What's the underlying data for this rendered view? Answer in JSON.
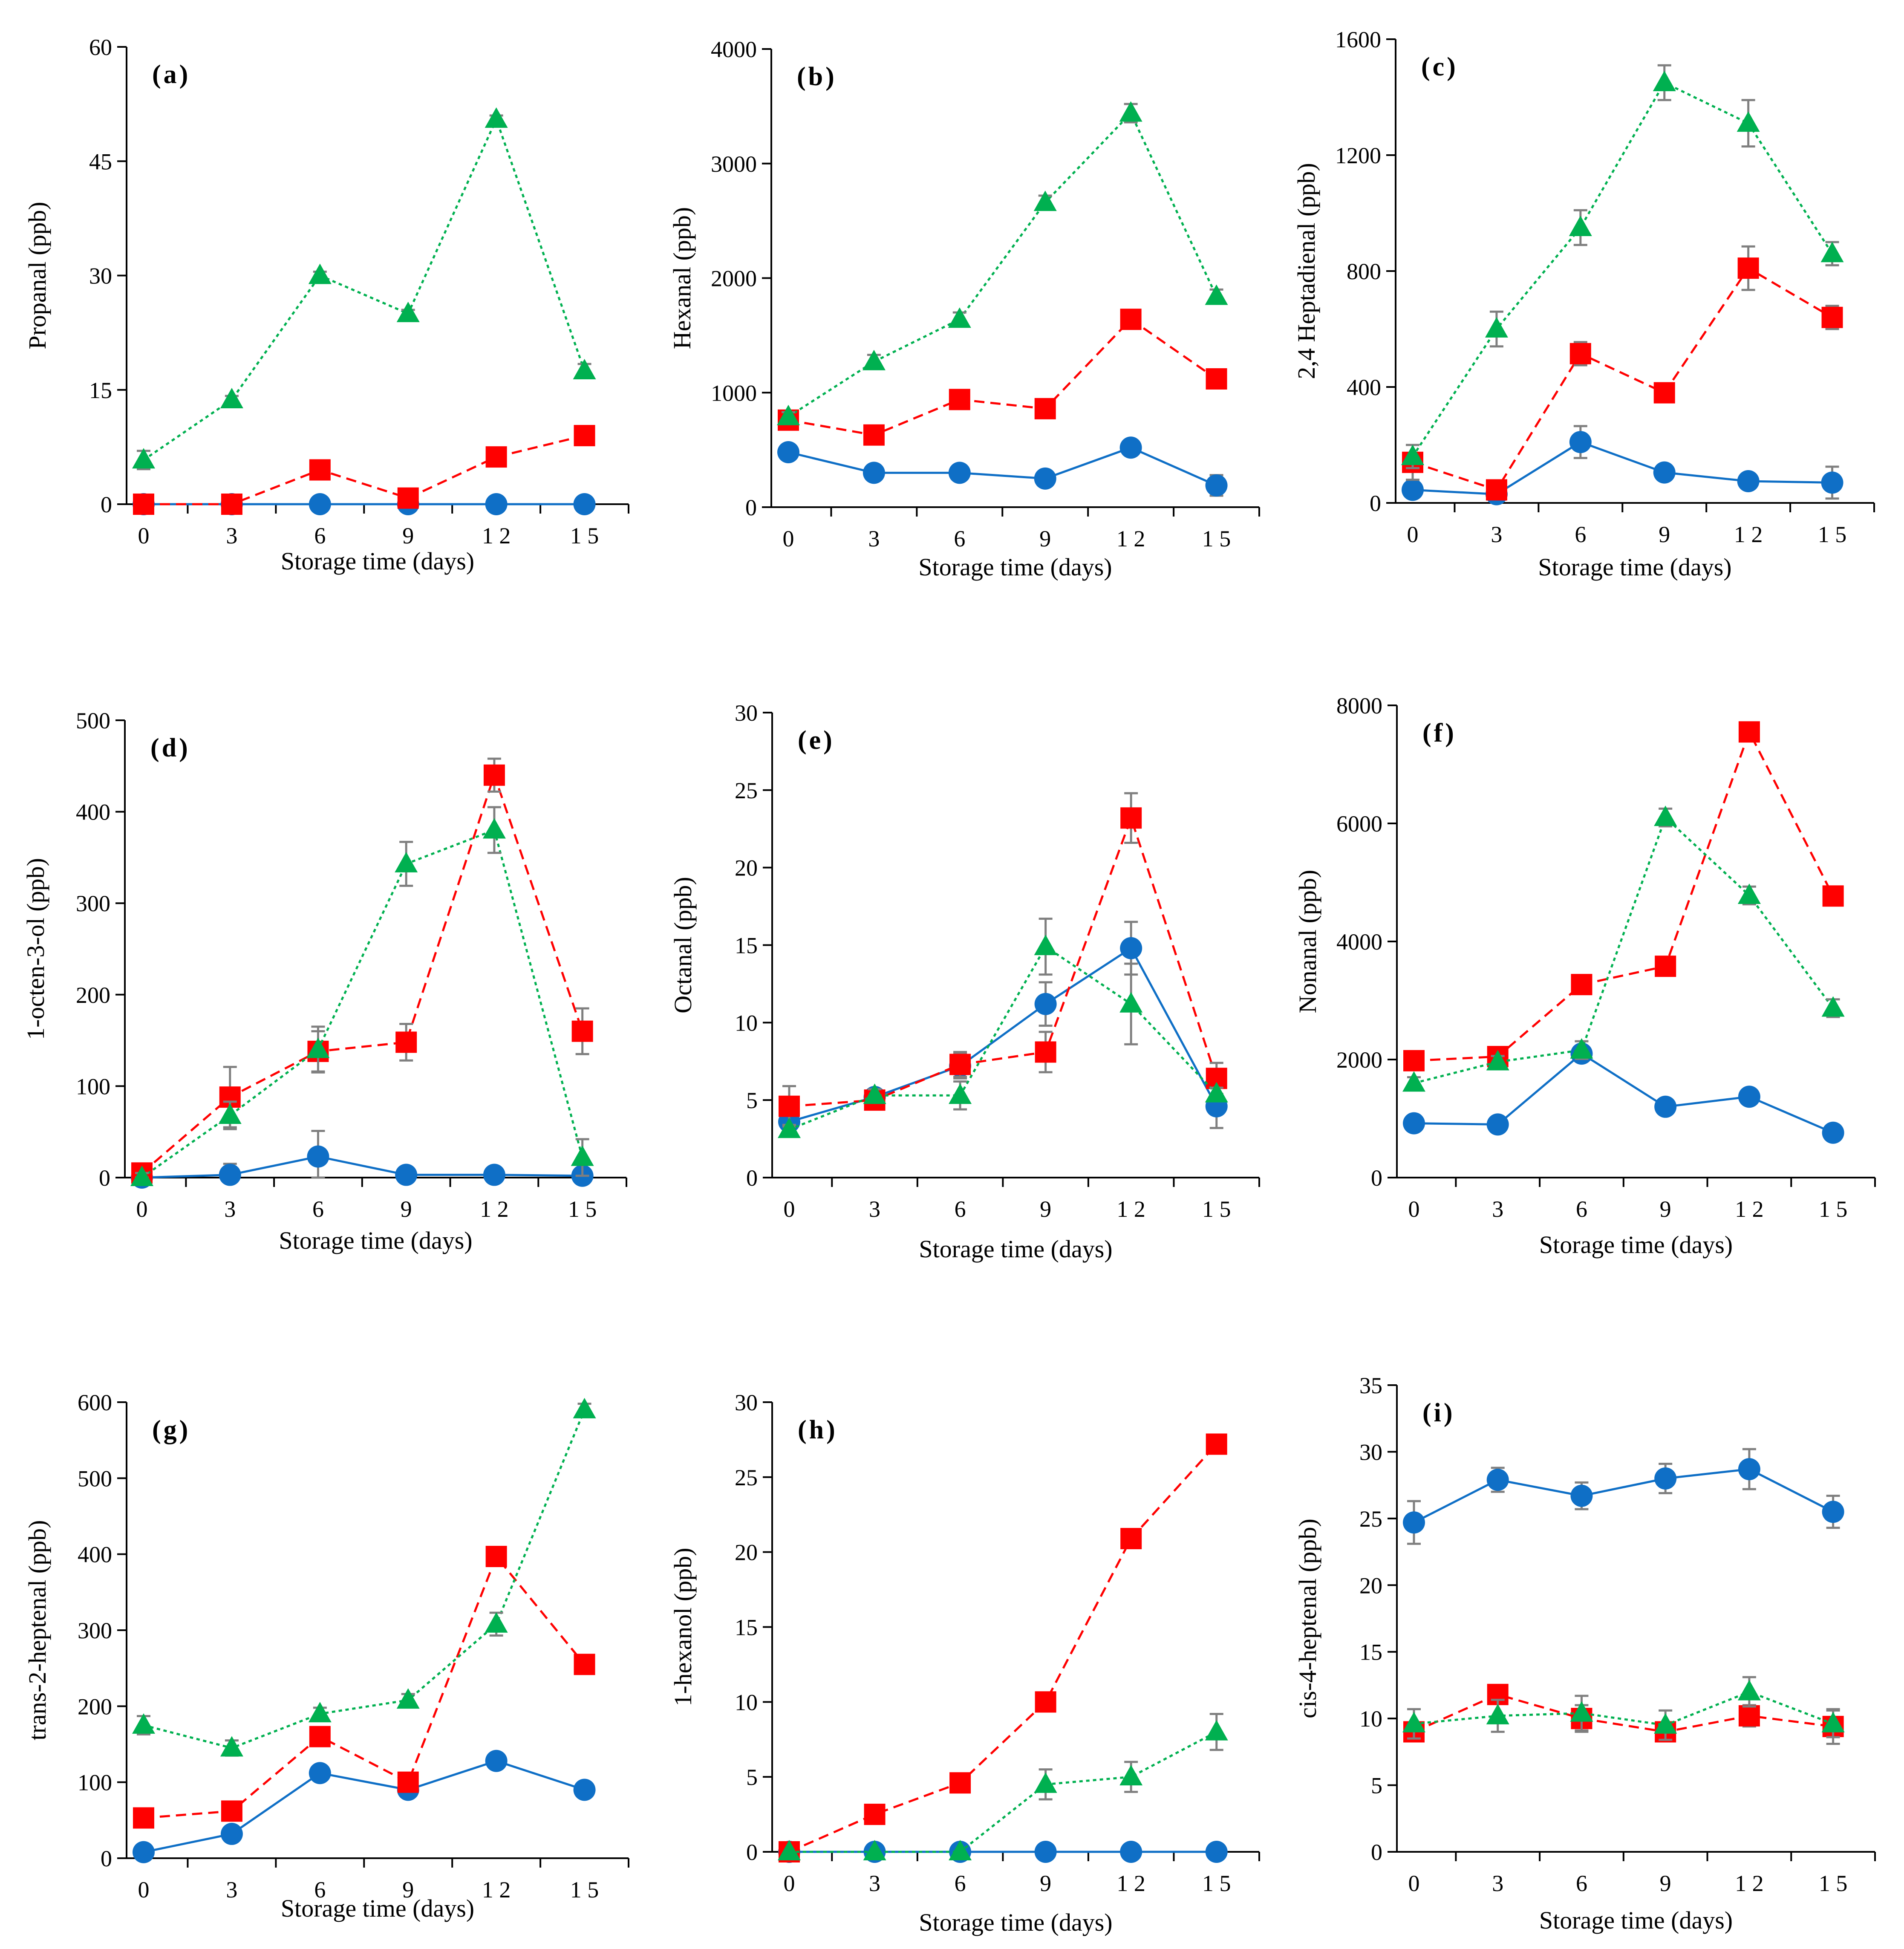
{
  "colors": {
    "blue": "#0f6fc6",
    "red": "#ff0000",
    "green": "#00b050",
    "error": "#7f7f7f",
    "axis": "#000000"
  },
  "chart_data": [
    {
      "type": "line",
      "label": "(a)",
      "ylabel": "Propanal (ppb)",
      "xlabel": "Storage time (days)",
      "ylim": [
        0,
        60
      ],
      "yticks": [
        0,
        15,
        30,
        45,
        60
      ],
      "x": [
        0,
        3,
        6,
        9,
        12,
        15
      ],
      "xtick_labels": [
        "0",
        "3",
        "6",
        "9",
        "1 2",
        "1 5"
      ],
      "series": [
        {
          "name": "blue",
          "color": "#0f6fc6",
          "marker": "circle",
          "dash": "solid",
          "values": [
            0,
            0,
            0,
            0,
            0,
            0
          ],
          "errors": [
            0,
            0,
            0,
            0,
            0,
            0
          ]
        },
        {
          "name": "red",
          "color": "#ff0000",
          "marker": "square",
          "dash": "dashed",
          "values": [
            0,
            0,
            4.5,
            0.8,
            6.2,
            9
          ],
          "errors": [
            0,
            0,
            0.4,
            0.3,
            0.4,
            0.5
          ]
        },
        {
          "name": "green",
          "color": "#00b050",
          "marker": "triangle",
          "dash": "dotted",
          "values": [
            5.8,
            13.7,
            30,
            25,
            50.5,
            17.5
          ],
          "errors": [
            1.2,
            0.5,
            0.5,
            0.5,
            0.5,
            0.9
          ]
        }
      ]
    },
    {
      "type": "line",
      "label": "(b)",
      "ylabel": "Hexanal (ppb)",
      "xlabel": "Storage time (days)",
      "ylim": [
        0,
        4000
      ],
      "yticks": [
        0,
        1000,
        2000,
        3000,
        4000
      ],
      "x": [
        0,
        3,
        6,
        9,
        12,
        15
      ],
      "xtick_labels": [
        "0",
        "3",
        "6",
        "9",
        "1 2",
        "1 5"
      ],
      "series": [
        {
          "name": "blue",
          "color": "#0f6fc6",
          "marker": "circle",
          "dash": "solid",
          "values": [
            480,
            300,
            300,
            250,
            520,
            190
          ],
          "errors": [
            40,
            30,
            30,
            30,
            40,
            90
          ]
        },
        {
          "name": "red",
          "color": "#ff0000",
          "marker": "square",
          "dash": "dashed",
          "values": [
            760,
            630,
            940,
            860,
            1640,
            1120
          ],
          "errors": [
            50,
            40,
            40,
            40,
            60,
            60
          ]
        },
        {
          "name": "green",
          "color": "#00b050",
          "marker": "triangle",
          "dash": "dotted",
          "values": [
            790,
            1270,
            1640,
            2660,
            3440,
            1840
          ],
          "errors": [
            40,
            60,
            60,
            60,
            80,
            60
          ]
        }
      ]
    },
    {
      "type": "line",
      "label": "(c)",
      "ylabel": "2,4 Heptadienal (ppb)",
      "xlabel": "Storage time (days)",
      "ylim": [
        0,
        1600
      ],
      "yticks": [
        0,
        400,
        800,
        1200,
        1600
      ],
      "x": [
        0,
        3,
        6,
        9,
        12,
        15
      ],
      "xtick_labels": [
        "0",
        "3",
        "6",
        "9",
        "1 2",
        "1 5"
      ],
      "series": [
        {
          "name": "blue",
          "color": "#0f6fc6",
          "marker": "circle",
          "dash": "solid",
          "values": [
            45,
            30,
            210,
            105,
            75,
            70
          ],
          "errors": [
            20,
            10,
            55,
            20,
            15,
            55
          ]
        },
        {
          "name": "red",
          "color": "#ff0000",
          "marker": "square",
          "dash": "dashed",
          "values": [
            140,
            45,
            515,
            380,
            810,
            640
          ],
          "errors": [
            60,
            20,
            40,
            30,
            75,
            40
          ]
        },
        {
          "name": "green",
          "color": "#00b050",
          "marker": "triangle",
          "dash": "dotted",
          "values": [
            160,
            600,
            950,
            1450,
            1310,
            860
          ],
          "errors": [
            40,
            60,
            60,
            60,
            80,
            40
          ]
        }
      ]
    },
    {
      "type": "line",
      "label": "(d)",
      "ylabel": "1-octen-3-ol (ppb)",
      "xlabel": "Storage time (days)",
      "ylim": [
        0,
        500
      ],
      "yticks": [
        0,
        100,
        200,
        300,
        400,
        500
      ],
      "x": [
        0,
        3,
        6,
        9,
        12,
        15
      ],
      "xtick_labels": [
        "0",
        "3",
        "6",
        "9",
        "1 2",
        "1 5"
      ],
      "series": [
        {
          "name": "blue",
          "color": "#0f6fc6",
          "marker": "circle",
          "dash": "solid",
          "values": [
            0,
            3,
            23,
            3,
            3,
            2
          ],
          "errors": [
            3,
            12,
            28,
            3,
            3,
            2
          ]
        },
        {
          "name": "red",
          "color": "#ff0000",
          "marker": "square",
          "dash": "dashed",
          "values": [
            5,
            88,
            138,
            148,
            440,
            160
          ],
          "errors": [
            10,
            33,
            22,
            20,
            18,
            25
          ]
        },
        {
          "name": "green",
          "color": "#00b050",
          "marker": "triangle",
          "dash": "dotted",
          "values": [
            0,
            68,
            140,
            343,
            380,
            22
          ],
          "errors": [
            5,
            15,
            25,
            24,
            25,
            20
          ]
        }
      ]
    },
    {
      "type": "line",
      "label": "(e)",
      "ylabel": "Octanal (ppb)",
      "xlabel": "Storage time (days)",
      "ylim": [
        0,
        30
      ],
      "yticks": [
        0,
        5,
        10,
        15,
        20,
        25,
        30
      ],
      "x": [
        0,
        3,
        6,
        9,
        12,
        15
      ],
      "xtick_labels": [
        "0",
        "3",
        "6",
        "9",
        "1 2",
        "1 5"
      ],
      "series": [
        {
          "name": "blue",
          "color": "#0f6fc6",
          "marker": "circle",
          "dash": "solid",
          "values": [
            3.6,
            5.2,
            7.2,
            11.2,
            14.8,
            4.6
          ],
          "errors": [
            0.4,
            0.4,
            0.8,
            1.4,
            1.7,
            1.4
          ]
        },
        {
          "name": "red",
          "color": "#ff0000",
          "marker": "square",
          "dash": "dashed",
          "values": [
            4.6,
            5.0,
            7.3,
            8.1,
            23.2,
            6.4
          ],
          "errors": [
            1.3,
            0.4,
            0.8,
            1.3,
            1.6,
            1.0
          ]
        },
        {
          "name": "green",
          "color": "#00b050",
          "marker": "triangle",
          "dash": "dotted",
          "values": [
            3.1,
            5.3,
            5.3,
            14.9,
            11.2,
            5.4
          ],
          "errors": [
            0.3,
            0.4,
            0.9,
            1.8,
            2.6,
            0.4
          ]
        }
      ]
    },
    {
      "type": "line",
      "label": "(f)",
      "ylabel": "Nonanal (ppb)",
      "xlabel": "Storage time (days)",
      "ylim": [
        0,
        8000
      ],
      "yticks": [
        0,
        2000,
        4000,
        6000,
        8000
      ],
      "x": [
        0,
        3,
        6,
        9,
        12,
        15
      ],
      "xtick_labels": [
        "0",
        "3",
        "6",
        "9",
        "1 2",
        "1 5"
      ],
      "series": [
        {
          "name": "blue",
          "color": "#0f6fc6",
          "marker": "circle",
          "dash": "solid",
          "values": [
            920,
            900,
            2100,
            1200,
            1370,
            760
          ],
          "errors": [
            120,
            100,
            120,
            100,
            100,
            100
          ]
        },
        {
          "name": "red",
          "color": "#ff0000",
          "marker": "square",
          "dash": "dashed",
          "values": [
            1980,
            2050,
            3270,
            3580,
            7550,
            4770
          ],
          "errors": [
            150,
            100,
            100,
            100,
            100,
            100
          ]
        },
        {
          "name": "green",
          "color": "#00b050",
          "marker": "triangle",
          "dash": "dotted",
          "values": [
            1600,
            1960,
            2160,
            6100,
            4780,
            2870
          ],
          "errors": [
            100,
            100,
            150,
            150,
            150,
            150
          ]
        }
      ]
    },
    {
      "type": "line",
      "label": "(g)",
      "ylabel": "trans-2-heptenal (ppb)",
      "xlabel": "Storage time (days)",
      "ylim": [
        0,
        600
      ],
      "yticks": [
        0,
        100,
        200,
        300,
        400,
        500,
        600
      ],
      "x": [
        0,
        3,
        6,
        9,
        12,
        15
      ],
      "xtick_labels": [
        "0",
        "3",
        "6",
        "9",
        "1 2",
        "1 5"
      ],
      "series": [
        {
          "name": "blue",
          "color": "#0f6fc6",
          "marker": "circle",
          "dash": "solid",
          "values": [
            8,
            32,
            112,
            90,
            128,
            90
          ],
          "errors": [
            3,
            5,
            6,
            5,
            6,
            5
          ]
        },
        {
          "name": "red",
          "color": "#ff0000",
          "marker": "square",
          "dash": "dashed",
          "values": [
            53,
            62,
            160,
            100,
            397,
            255
          ],
          "errors": [
            5,
            5,
            8,
            5,
            10,
            10
          ]
        },
        {
          "name": "green",
          "color": "#00b050",
          "marker": "triangle",
          "dash": "dotted",
          "values": [
            175,
            145,
            190,
            208,
            308,
            590
          ],
          "errors": [
            12,
            10,
            8,
            8,
            15,
            8
          ]
        }
      ]
    },
    {
      "type": "line",
      "label": "(h)",
      "ylabel": "1-hexanol (ppb)",
      "xlabel": "Storage time (days)",
      "ylim": [
        0,
        30
      ],
      "yticks": [
        0,
        5,
        10,
        15,
        20,
        25,
        30
      ],
      "x": [
        0,
        3,
        6,
        9,
        12,
        15
      ],
      "xtick_labels": [
        "0",
        "3",
        "6",
        "9",
        "1 2",
        "1 5"
      ],
      "series": [
        {
          "name": "blue",
          "color": "#0f6fc6",
          "marker": "circle",
          "dash": "solid",
          "values": [
            0,
            0,
            0,
            0,
            0,
            0
          ],
          "errors": [
            0,
            0,
            0,
            0,
            0,
            0
          ]
        },
        {
          "name": "red",
          "color": "#ff0000",
          "marker": "square",
          "dash": "dashed",
          "values": [
            0,
            2.5,
            4.6,
            10,
            20.9,
            27.2
          ],
          "errors": [
            0,
            0.2,
            0.2,
            0.6,
            0.2,
            0.2
          ]
        },
        {
          "name": "green",
          "color": "#00b050",
          "marker": "triangle",
          "dash": "dotted",
          "values": [
            0,
            0,
            0,
            4.5,
            5.0,
            8.0
          ],
          "errors": [
            0,
            0,
            0,
            1.0,
            1.0,
            1.2
          ]
        }
      ]
    },
    {
      "type": "line",
      "label": "(i)",
      "ylabel": "cis-4-heptenal (ppb)",
      "xlabel": "Storage time (days)",
      "ylim": [
        0,
        35
      ],
      "yticks": [
        0,
        5,
        10,
        15,
        20,
        25,
        30,
        35
      ],
      "x": [
        0,
        3,
        6,
        9,
        12,
        15
      ],
      "xtick_labels": [
        "0",
        "3",
        "6",
        "9",
        "1 2",
        "1 5"
      ],
      "series": [
        {
          "name": "blue",
          "color": "#0f6fc6",
          "marker": "circle",
          "dash": "solid",
          "values": [
            24.7,
            27.9,
            26.7,
            28.0,
            28.7,
            25.5
          ],
          "errors": [
            1.6,
            0.9,
            1.0,
            1.1,
            1.5,
            1.2
          ]
        },
        {
          "name": "red",
          "color": "#ff0000",
          "marker": "square",
          "dash": "dashed",
          "values": [
            9.0,
            11.8,
            10.0,
            9.0,
            10.2,
            9.4
          ],
          "errors": [
            0.5,
            0.6,
            1.0,
            0.6,
            0.8,
            1.3
          ]
        },
        {
          "name": "green",
          "color": "#00b050",
          "marker": "triangle",
          "dash": "dotted",
          "values": [
            9.6,
            10.2,
            10.4,
            9.5,
            12.0,
            9.6
          ],
          "errors": [
            1.1,
            1.2,
            1.3,
            1.1,
            1.1,
            1.0
          ]
        }
      ]
    }
  ]
}
